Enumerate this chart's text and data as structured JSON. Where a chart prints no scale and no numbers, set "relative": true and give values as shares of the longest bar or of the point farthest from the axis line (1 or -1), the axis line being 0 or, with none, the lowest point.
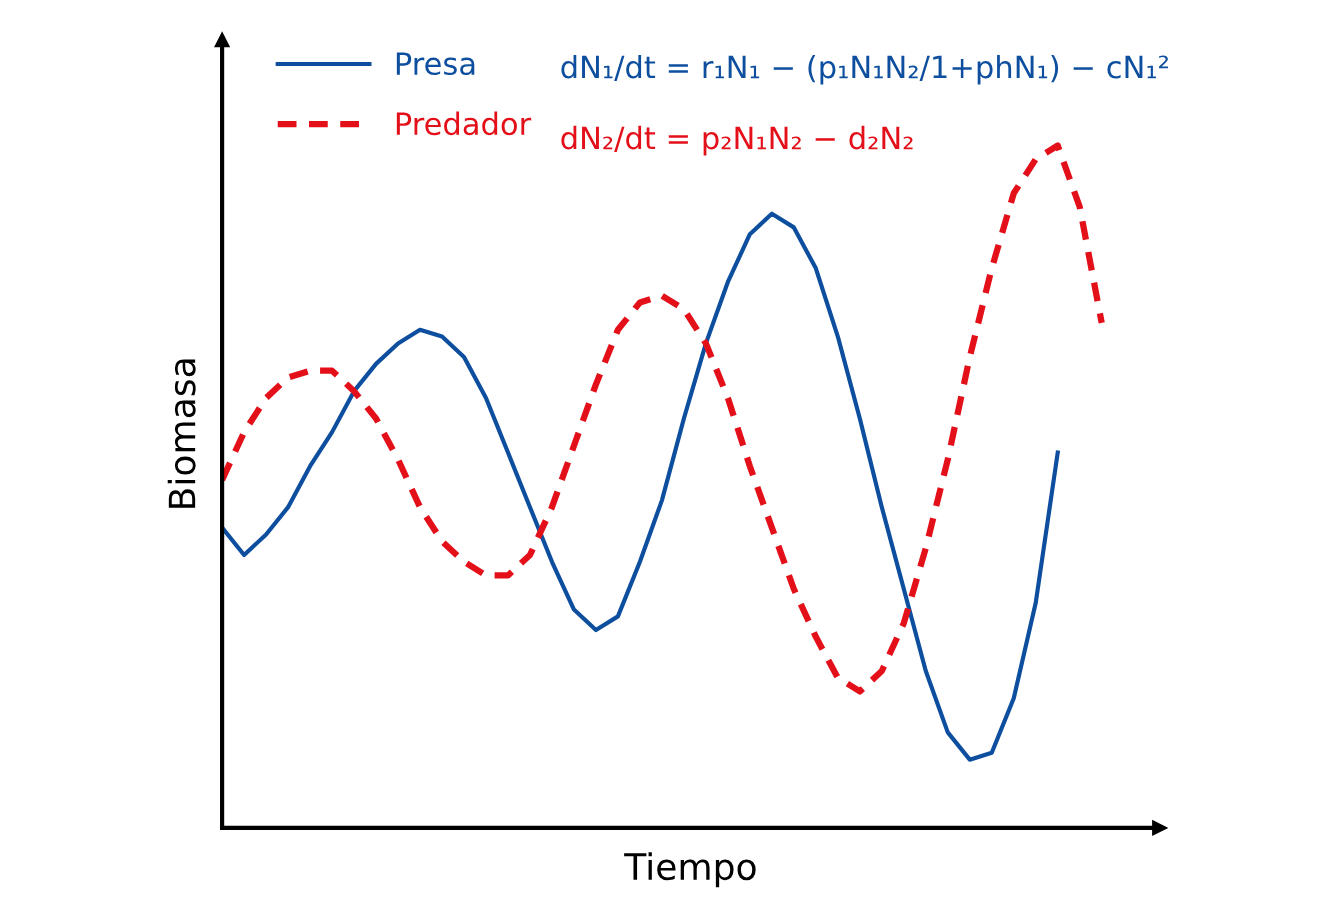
{
  "chart_data": {
    "type": "line",
    "relative": true,
    "xlabel": "Tiempo",
    "ylabel": "Biomasa",
    "legend": "top left",
    "grid": false,
    "marker": "none",
    "categories": [
      null,
      null,
      null,
      null,
      null,
      null,
      null,
      null,
      null,
      null,
      null,
      null,
      null,
      null,
      null,
      null,
      null,
      null,
      null,
      null,
      null,
      null,
      null,
      null,
      null,
      null,
      null,
      null,
      null,
      null,
      null,
      null,
      null,
      null,
      null,
      null,
      null,
      null,
      null,
      null,
      null
    ],
    "series": [
      {
        "name": "Presa",
        "color": "#0d4f9e",
        "line_style": "solid",
        "values": [
          0.44,
          0.4,
          0.43,
          0.47,
          0.53,
          0.58,
          0.64,
          0.68,
          0.71,
          0.73,
          0.72,
          0.69,
          0.63,
          0.55,
          0.47,
          0.39,
          0.32,
          0.29,
          0.31,
          0.39,
          0.48,
          0.6,
          0.71,
          0.8,
          0.87,
          0.9,
          0.88,
          0.82,
          0.72,
          0.6,
          0.47,
          0.35,
          0.23,
          0.14,
          0.1,
          0.11,
          0.19,
          0.33,
          0.55,
          null,
          null
        ]
      },
      {
        "name": "Predador",
        "color": "#e3101a",
        "line_style": "dashed",
        "values": [
          0.51,
          0.58,
          0.63,
          0.66,
          0.67,
          0.67,
          0.64,
          0.6,
          0.54,
          0.47,
          0.42,
          0.39,
          0.37,
          0.37,
          0.4,
          0.47,
          0.56,
          0.65,
          0.73,
          0.77,
          0.78,
          0.76,
          0.71,
          0.63,
          0.53,
          0.44,
          0.35,
          0.28,
          0.22,
          0.2,
          0.23,
          0.3,
          0.41,
          0.54,
          0.69,
          0.82,
          0.93,
          0.98,
          1.0,
          0.91,
          0.74
        ]
      }
    ],
    "annotations": [
      "dN₁/dt = r₁N₁ − (p₁N₁N₂/1+phN₁) − cN₁²",
      "dN₂/dt = p₂N₁N₂ − d₂N₂"
    ]
  }
}
